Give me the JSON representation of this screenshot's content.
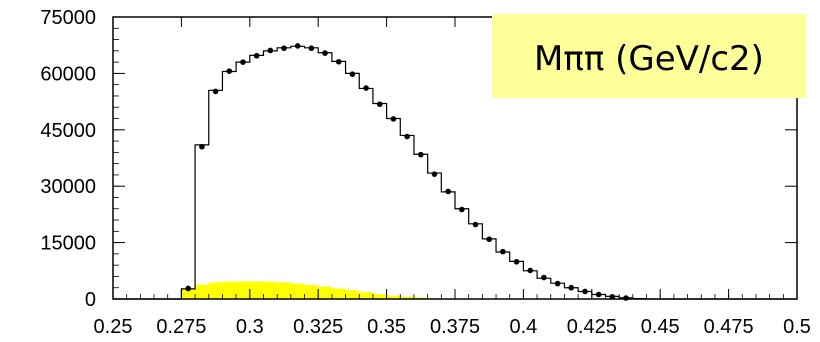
{
  "chart_data": {
    "type": "histogram",
    "title": "Mππ (GeV/c2)",
    "xlabel": "",
    "ylabel": "",
    "xlim": [
      0.25,
      0.5
    ],
    "ylim": [
      0,
      75000
    ],
    "grid": false,
    "x_ticks": [
      "0.25",
      "0.275",
      "0.3",
      "0.325",
      "0.35",
      "0.375",
      "0.4",
      "0.425",
      "0.45",
      "0.475",
      "0.5"
    ],
    "y_ticks": [
      "0",
      "15000",
      "30000",
      "45000",
      "60000",
      "75000"
    ],
    "bin_width": 0.005,
    "bin_centers": [
      0.2775,
      0.2825,
      0.2875,
      0.2925,
      0.2975,
      0.3025,
      0.3075,
      0.3125,
      0.3175,
      0.3225,
      0.3275,
      0.3325,
      0.3375,
      0.3425,
      0.3475,
      0.3525,
      0.3575,
      0.3625,
      0.3675,
      0.3725,
      0.3775,
      0.3825,
      0.3875,
      0.3925,
      0.3975,
      0.4025,
      0.4075,
      0.4125,
      0.4175,
      0.4225,
      0.4275,
      0.4325,
      0.4375,
      0.4425
    ],
    "series": [
      {
        "kind": "step",
        "color": "#000000",
        "values": [
          2700,
          41000,
          55500,
          60500,
          63000,
          64800,
          66000,
          66800,
          67200,
          66800,
          65500,
          63200,
          60000,
          56000,
          52000,
          48000,
          43500,
          38500,
          33500,
          28500,
          24000,
          20000,
          16000,
          12500,
          10000,
          7500,
          5500,
          4200,
          3000,
          2000,
          1200,
          700,
          300,
          100
        ]
      },
      {
        "kind": "points",
        "color": "#000000",
        "values": [
          2800,
          40500,
          55200,
          60600,
          63000,
          64700,
          66100,
          66700,
          67300,
          66700,
          65400,
          63100,
          59800,
          56100,
          51800,
          47900,
          43200,
          38400,
          33200,
          28600,
          23800,
          19800,
          15900,
          12600,
          9900,
          7600,
          5700,
          4100,
          3000,
          2000,
          1200,
          600,
          250,
          80
        ]
      },
      {
        "kind": "filled",
        "color": "#ffff00",
        "values": [
          2800,
          3800,
          4400,
          4600,
          4700,
          4700,
          4600,
          4400,
          4100,
          3700,
          3300,
          2800,
          2300,
          1800,
          1300,
          900,
          600,
          400,
          200,
          100,
          0,
          0,
          0,
          0,
          0,
          0,
          0,
          0,
          0,
          0,
          0,
          0,
          0,
          0
        ]
      }
    ]
  }
}
